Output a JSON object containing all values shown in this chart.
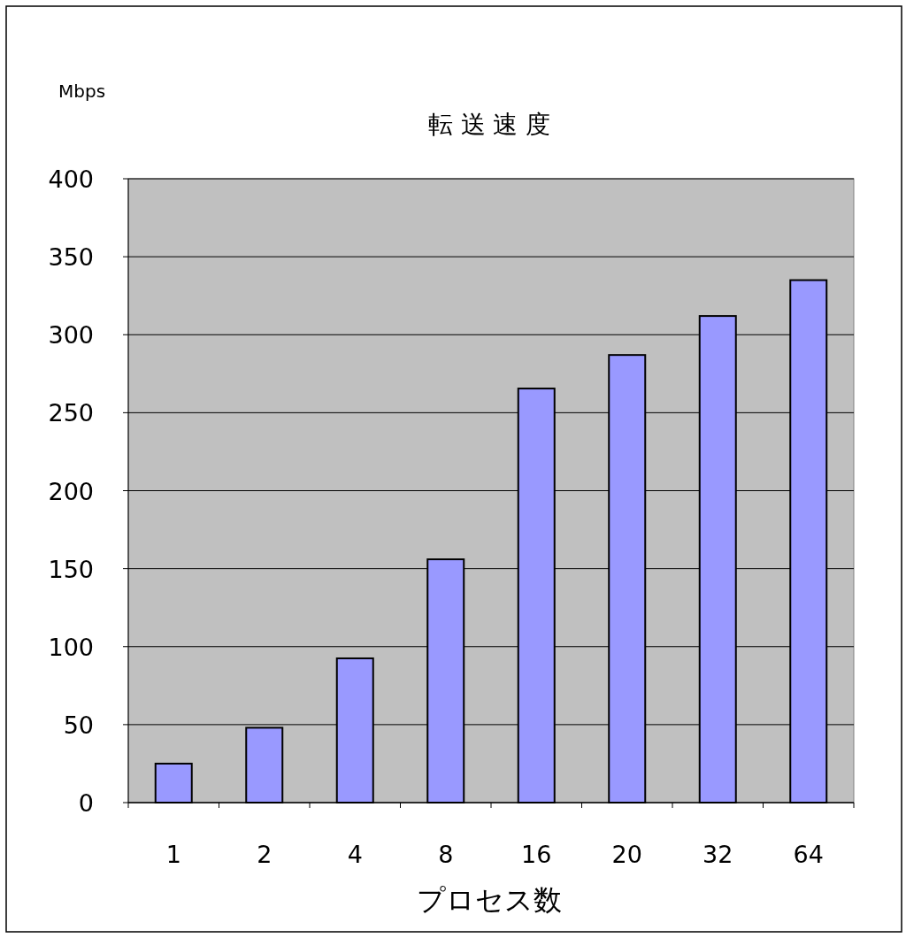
{
  "chart_data": {
    "type": "bar",
    "title": "転 送 速 度",
    "ylabel": "Mbps",
    "xlabel": "プロセス数",
    "categories": [
      "1",
      "2",
      "4",
      "8",
      "16",
      "20",
      "32",
      "64"
    ],
    "values": [
      25,
      48,
      92.5,
      156,
      265.5,
      287,
      312,
      335
    ],
    "color": "#9999ff",
    "ylim": [
      0,
      400
    ],
    "yticks": [
      0,
      50,
      100,
      150,
      200,
      250,
      300,
      350,
      400
    ],
    "grid": "y"
  }
}
